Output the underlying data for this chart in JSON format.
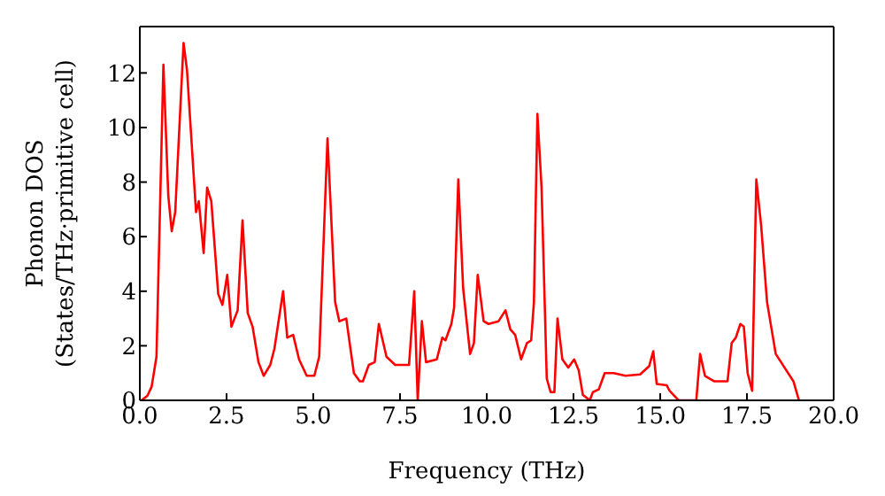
{
  "chart_data": {
    "type": "line",
    "xlabel": "Frequency (THz)",
    "ylabel": "Phonon DOS\n(States/THz·primitive cell)",
    "x": [
      0,
      0.05,
      0.22,
      0.34,
      0.48,
      0.68,
      0.82,
      0.92,
      1.02,
      1.26,
      1.36,
      1.62,
      1.7,
      1.84,
      1.94,
      2.06,
      2.26,
      2.38,
      2.52,
      2.64,
      2.82,
      2.96,
      3.11,
      3.25,
      3.42,
      3.57,
      3.76,
      3.88,
      4.13,
      4.25,
      4.42,
      4.59,
      4.81,
      5.03,
      5.17,
      5.41,
      5.63,
      5.75,
      5.95,
      6.17,
      6.34,
      6.43,
      6.6,
      6.77,
      6.89,
      7.11,
      7.36,
      7.76,
      7.91,
      8.01,
      8.13,
      8.25,
      8.56,
      8.72,
      8.81,
      8.98,
      9.06,
      9.18,
      9.32,
      9.52,
      9.63,
      9.74,
      9.91,
      10.05,
      10.34,
      10.54,
      10.68,
      10.82,
      10.99,
      11.16,
      11.28,
      11.36,
      11.46,
      11.58,
      11.73,
      11.84,
      11.95,
      12.04,
      12.18,
      12.35,
      12.52,
      12.65,
      12.77,
      12.97,
      13.06,
      13.23,
      13.4,
      13.66,
      14.0,
      14.42,
      14.68,
      14.8,
      14.9,
      15.19,
      15.27,
      15.53,
      16.04,
      16.15,
      16.29,
      16.55,
      16.94,
      17.06,
      17.18,
      17.31,
      17.41,
      17.52,
      17.65,
      17.77,
      17.91,
      18.08,
      18.33,
      18.84,
      19.0
    ],
    "series": [
      {
        "color": "#ff0000",
        "values": [
          0,
          0,
          0.17,
          0.5,
          1.6,
          12.3,
          7.5,
          6.2,
          6.9,
          13.1,
          12.1,
          6.9,
          7.3,
          5.4,
          7.8,
          7.3,
          3.9,
          3.5,
          4.6,
          2.7,
          3.3,
          6.6,
          3.2,
          2.7,
          1.4,
          0.9,
          1.3,
          1.9,
          4.0,
          2.3,
          2.4,
          1.5,
          0.9,
          0.9,
          1.6,
          9.6,
          3.6,
          2.9,
          3.0,
          1.0,
          0.7,
          0.7,
          1.3,
          1.4,
          2.8,
          1.6,
          1.3,
          1.3,
          4.0,
          0,
          2.9,
          1.4,
          1.5,
          2.3,
          2.2,
          2.8,
          3.4,
          8.1,
          4.1,
          1.7,
          2.1,
          4.6,
          2.9,
          2.8,
          2.9,
          3.3,
          2.6,
          2.4,
          1.5,
          2.1,
          2.2,
          3.6,
          10.5,
          7.8,
          0.8,
          0.3,
          0.3,
          3.0,
          1.5,
          1.2,
          1.5,
          1.1,
          0.2,
          0,
          0.3,
          0.4,
          1.0,
          1.0,
          0.9,
          0.95,
          1.25,
          1.8,
          0.6,
          0.55,
          0.35,
          0,
          0,
          1.7,
          0.9,
          0.7,
          0.7,
          2.1,
          2.3,
          2.8,
          2.7,
          1.0,
          0.35,
          8.1,
          6.4,
          3.6,
          1.7,
          0.7,
          0
        ]
      }
    ],
    "xlim": [
      0,
      20
    ],
    "xticks": [
      {
        "value": 0,
        "label": "0.0"
      },
      {
        "value": 2.5,
        "label": "2.5"
      },
      {
        "value": 5,
        "label": "5.0"
      },
      {
        "value": 7.5,
        "label": "7.5"
      },
      {
        "value": 10,
        "label": "10.0"
      },
      {
        "value": 12.5,
        "label": "12.5"
      },
      {
        "value": 15,
        "label": "15.0"
      },
      {
        "value": 17.5,
        "label": "17.5"
      },
      {
        "value": 20,
        "label": "20.0"
      }
    ],
    "ylim": [
      0,
      13.7
    ],
    "yticks": [
      0,
      2,
      4,
      6,
      8,
      10,
      12
    ],
    "grid": false,
    "legend": false,
    "marker": "none",
    "line_style": "solid"
  }
}
